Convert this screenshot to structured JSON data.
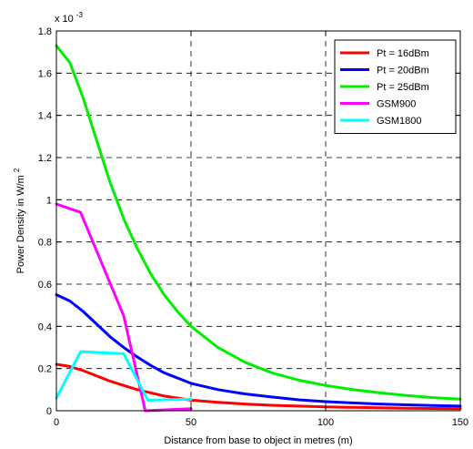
{
  "chart_data": {
    "type": "line",
    "title": "",
    "xlabel": "Distance from base to object in metres (m)",
    "ylabel_main": "Power Density  in  W/m",
    "ylabel_sup": "2",
    "scale_prefix": "x 10",
    "scale_exp": "-3",
    "xlim": [
      0,
      150
    ],
    "ylim": [
      0,
      0.0018
    ],
    "x_ticks": [
      0,
      50,
      100,
      150
    ],
    "x_tick_labels": [
      "0",
      "50",
      "100",
      "150"
    ],
    "y_ticks": [
      0,
      0.0002,
      0.0004,
      0.0006,
      0.0008,
      0.001,
      0.0012,
      0.0014,
      0.0016,
      0.0018
    ],
    "y_tick_labels": [
      "0",
      "0.2",
      "0.4",
      "0.6",
      "0.8",
      "1",
      "1.2",
      "1.4",
      "1.6",
      "1.8"
    ],
    "grid": true,
    "legend_position": "top-right",
    "series": [
      {
        "name": "Pt = 16dBm",
        "color": "#ff0000",
        "x": [
          0,
          5,
          10,
          15,
          20,
          25,
          30,
          35,
          40,
          50,
          60,
          70,
          80,
          90,
          100,
          110,
          120,
          130,
          140,
          150
        ],
        "y": [
          0.00022,
          0.00021,
          0.00019,
          0.000165,
          0.00014,
          0.00012,
          0.0001,
          8.5e-05,
          7e-05,
          5e-05,
          4e-05,
          3.2e-05,
          2.6e-05,
          2.2e-05,
          1.8e-05,
          1.6e-05,
          1.4e-05,
          1.2e-05,
          1.1e-05,
          1e-05
        ]
      },
      {
        "name": "Pt = 20dBm",
        "color": "#0000ff",
        "x": [
          0,
          5,
          10,
          15,
          20,
          25,
          30,
          35,
          40,
          50,
          60,
          70,
          80,
          90,
          100,
          110,
          120,
          130,
          140,
          150
        ],
        "y": [
          0.00055,
          0.00052,
          0.00047,
          0.00041,
          0.00035,
          0.0003,
          0.000255,
          0.000215,
          0.00018,
          0.00013,
          0.0001,
          8e-05,
          6.5e-05,
          5.2e-05,
          4.3e-05,
          3.7e-05,
          3.2e-05,
          2.8e-05,
          2.5e-05,
          2.2e-05
        ]
      },
      {
        "name": "Pt = 25dBm",
        "color": "#00ee00",
        "x": [
          0,
          5,
          10,
          15,
          20,
          25,
          30,
          35,
          40,
          45,
          50,
          60,
          70,
          80,
          90,
          100,
          110,
          120,
          130,
          140,
          150
        ],
        "y": [
          0.00173,
          0.00165,
          0.00148,
          0.00128,
          0.00108,
          0.00091,
          0.00077,
          0.00065,
          0.00055,
          0.00047,
          0.0004,
          0.0003,
          0.00023,
          0.00018,
          0.000145,
          0.00012,
          0.0001,
          8.5e-05,
          7.2e-05,
          6.2e-05,
          5.5e-05
        ]
      },
      {
        "name": "GSM900",
        "color": "#ff00ff",
        "x": [
          0,
          9,
          25,
          33,
          50
        ],
        "y": [
          0.00098,
          0.00094,
          0.00045,
          0.0,
          1e-05
        ]
      },
      {
        "name": "GSM1800",
        "color": "#00ffff",
        "x": [
          0,
          9,
          25,
          34,
          50
        ],
        "y": [
          6e-05,
          0.00028,
          0.00027,
          5e-05,
          5.5e-05
        ]
      }
    ]
  }
}
